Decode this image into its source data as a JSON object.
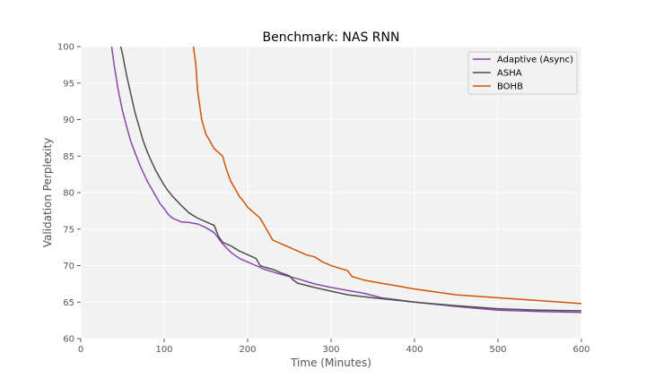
{
  "chart_data": {
    "type": "line",
    "title": "Benchmark: NAS RNN",
    "xlabel": "Time (Minutes)",
    "ylabel": "Validation Perplexity",
    "xlim": [
      0,
      600
    ],
    "ylim": [
      60,
      100
    ],
    "xticks": [
      0,
      100,
      200,
      300,
      400,
      500,
      600
    ],
    "yticks": [
      60,
      65,
      70,
      75,
      80,
      85,
      90,
      95,
      100
    ],
    "grid": true,
    "legend_position": "top-right",
    "background": "#f2f2f2",
    "series": [
      {
        "name": "Adaptive (Async)",
        "color": "#8e44ad",
        "x": [
          37,
          40,
          45,
          50,
          55,
          60,
          65,
          70,
          75,
          80,
          85,
          90,
          95,
          100,
          105,
          110,
          120,
          130,
          140,
          150,
          160,
          170,
          180,
          190,
          200,
          210,
          220,
          240,
          260,
          280,
          300,
          320,
          340,
          350,
          360,
          380,
          400,
          450,
          500,
          550,
          600
        ],
        "y": [
          100,
          97.5,
          94,
          91.2,
          89,
          87,
          85.5,
          84,
          82.7,
          81.5,
          80.5,
          79.5,
          78.5,
          77.8,
          77,
          76.5,
          76,
          75.9,
          75.7,
          75.2,
          74.5,
          73,
          71.8,
          71,
          70.5,
          70,
          69.5,
          68.8,
          68.2,
          67.5,
          67,
          66.6,
          66.2,
          65.9,
          65.6,
          65.3,
          65,
          64.4,
          63.9,
          63.7,
          63.6
        ]
      },
      {
        "name": "ASHA",
        "color": "#4d4d4d",
        "x": [
          48,
          50,
          55,
          60,
          65,
          70,
          75,
          80,
          85,
          90,
          95,
          100,
          105,
          110,
          120,
          130,
          140,
          150,
          160,
          165,
          170,
          180,
          190,
          200,
          210,
          215,
          220,
          230,
          240,
          250,
          255,
          260,
          280,
          300,
          320,
          350,
          400,
          450,
          500,
          550,
          600
        ],
        "y": [
          100,
          99,
          96,
          93.5,
          91,
          89,
          87,
          85.5,
          84.2,
          83,
          82,
          81,
          80.2,
          79.5,
          78.3,
          77.2,
          76.5,
          76,
          75.5,
          74,
          73.2,
          72.7,
          72,
          71.5,
          71,
          70,
          69.8,
          69.5,
          69,
          68.6,
          68,
          67.6,
          67,
          66.5,
          66,
          65.6,
          65,
          64.5,
          64.1,
          63.9,
          63.8
        ]
      },
      {
        "name": "BOHB",
        "color": "#d35400",
        "x": [
          135,
          138,
          140,
          145,
          150,
          155,
          160,
          165,
          170,
          175,
          180,
          185,
          190,
          195,
          200,
          205,
          210,
          215,
          220,
          225,
          230,
          240,
          250,
          260,
          270,
          280,
          290,
          300,
          320,
          325,
          340,
          360,
          380,
          400,
          450,
          500,
          550,
          600
        ],
        "y": [
          100,
          97.5,
          94,
          90,
          88,
          87,
          86,
          85.5,
          85,
          83,
          81.5,
          80.5,
          79.5,
          78.8,
          78,
          77.5,
          77,
          76.5,
          75.5,
          74.5,
          73.5,
          73,
          72.5,
          72,
          71.5,
          71.2,
          70.5,
          70,
          69.3,
          68.5,
          68,
          67.6,
          67.2,
          66.8,
          66,
          65.6,
          65.2,
          64.8
        ]
      }
    ]
  }
}
